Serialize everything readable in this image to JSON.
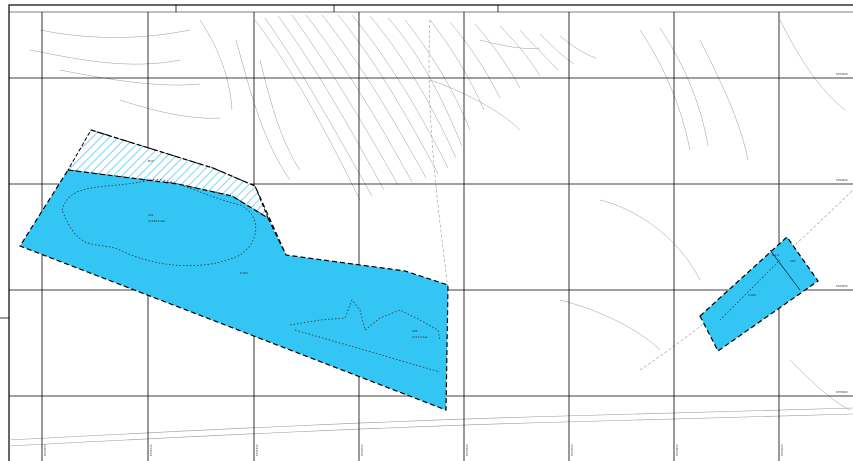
{
  "map": {
    "grid_labels_bottom": [
      "6750500",
      "6751000",
      "6751500",
      "6752000",
      "6752500",
      "6753000",
      "6753500",
      "6754000"
    ],
    "grid_labels_right": [
      "6784500",
      "6784000",
      "6783500",
      "6783000"
    ],
    "areas": [
      {
        "label": "AO1",
        "sublabel": "A=199.9 daa",
        "fill": "#33c5f3"
      },
      {
        "label": "AO2",
        "sublabel": "A=17.1 daa",
        "fill": "#33c5f3"
      },
      {
        "label": "AO3",
        "sublabel": "",
        "fill": "#33c5f3"
      }
    ],
    "point_labels": [
      "M13",
      "H-303",
      "H-400",
      "N-1.3"
    ],
    "colors": {
      "water": "#33c5f3",
      "hatch": "#7fd6f3",
      "grid": "#000000",
      "contour": "#9a9a9a"
    }
  }
}
